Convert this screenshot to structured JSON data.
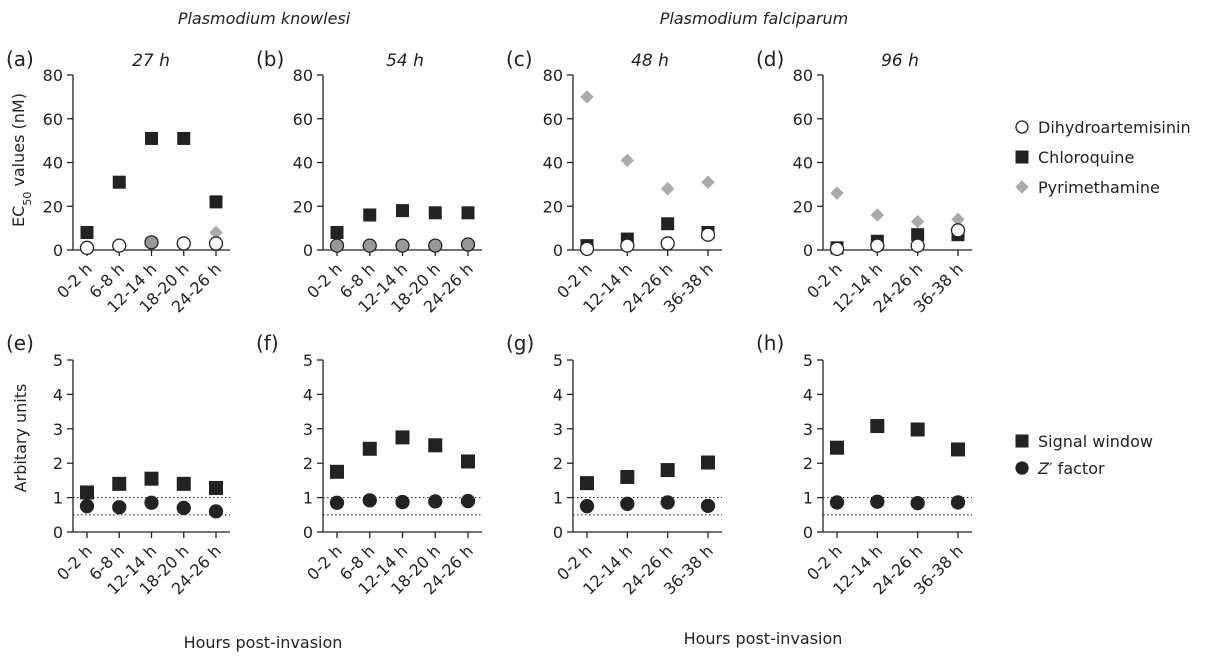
{
  "species_labels": [
    "Plasmodium knowlesi",
    "Plasmodium falciparum"
  ],
  "row1_ylabel": "EC50 values (nM)",
  "row2_ylabel": "Arbitary units",
  "xlabel": "Hours post-invasion",
  "legend_top": [
    {
      "name": "Dihydroartemisinin",
      "marker": "circle-open"
    },
    {
      "name": "Chloroquine",
      "marker": "square"
    },
    {
      "name": "Pyrimethamine",
      "marker": "diamond"
    }
  ],
  "legend_bottom": [
    {
      "name": "Signal window",
      "marker": "square"
    },
    {
      "name": "Z′ factor",
      "marker": "circle"
    }
  ],
  "colors": {
    "axis": "#222222",
    "dark": "#222222",
    "grey": "#aaaaaa",
    "mid_grey": "#999999"
  },
  "chart_data": [
    {
      "type": "scatter",
      "panel": "(a)",
      "title": "27 h",
      "categories": [
        "0-2 h",
        "6-8 h",
        "12-14 h",
        "18-20 h",
        "24-26 h"
      ],
      "ylim": [
        0,
        80
      ],
      "yticks": [
        0,
        20,
        40,
        60,
        80
      ],
      "series": [
        {
          "name": "Dihydroartemisinin",
          "values": [
            1,
            2,
            3.5,
            3,
            3
          ]
        },
        {
          "name": "Chloroquine",
          "values": [
            8,
            31,
            51,
            51,
            22
          ]
        },
        {
          "name": "Pyrimethamine",
          "values": [
            null,
            null,
            null,
            null,
            8
          ]
        }
      ]
    },
    {
      "type": "scatter",
      "panel": "(b)",
      "title": "54 h",
      "categories": [
        "0-2 h",
        "6-8 h",
        "12-14 h",
        "18-20 h",
        "24-26 h"
      ],
      "ylim": [
        0,
        80
      ],
      "yticks": [
        0,
        20,
        40,
        60,
        80
      ],
      "series": [
        {
          "name": "Dihydroartemisinin",
          "values": [
            2,
            2,
            2,
            2,
            2.5
          ]
        },
        {
          "name": "Chloroquine",
          "values": [
            8,
            16,
            18,
            17,
            17
          ]
        },
        {
          "name": "Pyrimethamine",
          "values": [
            2,
            2,
            2,
            2,
            2.5
          ]
        }
      ]
    },
    {
      "type": "scatter",
      "panel": "(c)",
      "title": "48 h",
      "categories": [
        "0-2 h",
        "12-14 h",
        "24-26 h",
        "36-38 h"
      ],
      "ylim": [
        0,
        80
      ],
      "yticks": [
        0,
        20,
        40,
        60,
        80
      ],
      "series": [
        {
          "name": "Dihydroartemisinin",
          "values": [
            0.5,
            2,
            3,
            7
          ]
        },
        {
          "name": "Chloroquine",
          "values": [
            2,
            5,
            12,
            8
          ]
        },
        {
          "name": "Pyrimethamine",
          "values": [
            70,
            41,
            28,
            31
          ]
        }
      ]
    },
    {
      "type": "scatter",
      "panel": "(d)",
      "title": "96 h",
      "categories": [
        "0-2 h",
        "12-14 h",
        "24-26 h",
        "36-38 h"
      ],
      "ylim": [
        0,
        80
      ],
      "yticks": [
        0,
        20,
        40,
        60,
        80
      ],
      "series": [
        {
          "name": "Dihydroartemisinin",
          "values": [
            0.5,
            2,
            2,
            9
          ]
        },
        {
          "name": "Chloroquine",
          "values": [
            1,
            4,
            7,
            7
          ]
        },
        {
          "name": "Pyrimethamine",
          "values": [
            26,
            16,
            13,
            14
          ]
        }
      ]
    },
    {
      "type": "scatter",
      "panel": "(e)",
      "title": "",
      "categories": [
        "0-2 h",
        "6-8 h",
        "12-14 h",
        "18-20 h",
        "24-26 h"
      ],
      "ylim": [
        0,
        5
      ],
      "yticks": [
        0,
        1,
        2,
        3,
        4,
        5
      ],
      "reference_lines": [
        0.5,
        1
      ],
      "series": [
        {
          "name": "Signal window",
          "values": [
            1.15,
            1.4,
            1.55,
            1.4,
            1.28
          ]
        },
        {
          "name": "Z′ factor",
          "values": [
            0.75,
            0.72,
            0.85,
            0.7,
            0.6
          ]
        }
      ]
    },
    {
      "type": "scatter",
      "panel": "(f)",
      "title": "",
      "categories": [
        "0-2 h",
        "6-8 h",
        "12-14 h",
        "18-20 h",
        "24-26 h"
      ],
      "ylim": [
        0,
        5
      ],
      "yticks": [
        0,
        1,
        2,
        3,
        4,
        5
      ],
      "reference_lines": [
        0.5,
        1
      ],
      "series": [
        {
          "name": "Signal window",
          "values": [
            1.75,
            2.42,
            2.75,
            2.52,
            2.05
          ]
        },
        {
          "name": "Z′ factor",
          "values": [
            0.85,
            0.92,
            0.87,
            0.89,
            0.9
          ]
        }
      ]
    },
    {
      "type": "scatter",
      "panel": "(g)",
      "title": "",
      "categories": [
        "0-2 h",
        "12-14 h",
        "24-26 h",
        "36-38 h"
      ],
      "ylim": [
        0,
        5
      ],
      "yticks": [
        0,
        1,
        2,
        3,
        4,
        5
      ],
      "reference_lines": [
        0.5,
        1
      ],
      "series": [
        {
          "name": "Signal window",
          "values": [
            1.42,
            1.6,
            1.8,
            2.02
          ]
        },
        {
          "name": "Z′ factor",
          "values": [
            0.75,
            0.82,
            0.86,
            0.76
          ]
        }
      ]
    },
    {
      "type": "scatter",
      "panel": "(h)",
      "title": "",
      "categories": [
        "0-2 h",
        "12-14 h",
        "24-26 h",
        "36-38 h"
      ],
      "ylim": [
        0,
        5
      ],
      "yticks": [
        0,
        1,
        2,
        3,
        4,
        5
      ],
      "reference_lines": [
        0.5,
        1
      ],
      "series": [
        {
          "name": "Signal window",
          "values": [
            2.45,
            3.08,
            2.98,
            2.4
          ]
        },
        {
          "name": "Z′ factor",
          "values": [
            0.86,
            0.88,
            0.84,
            0.86
          ]
        }
      ]
    }
  ]
}
